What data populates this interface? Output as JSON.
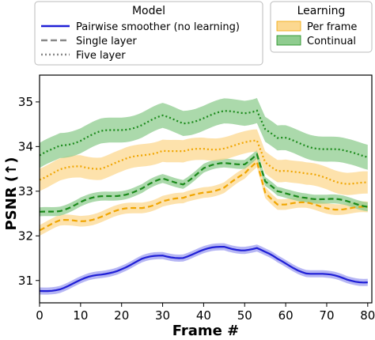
{
  "chart_data": {
    "type": "line",
    "xlabel": "Frame #",
    "ylabel": "PSNR (↑)",
    "xlim": [
      0,
      81
    ],
    "ylim": [
      30.5,
      35.6
    ],
    "xticks": [
      "0",
      "10",
      "20",
      "30",
      "40",
      "50",
      "60",
      "70",
      "80"
    ],
    "yticks": [
      "31",
      "32",
      "33",
      "34",
      "35"
    ],
    "legend_model": {
      "title": "Model",
      "entries": [
        "Pairwise smoother (no learning)",
        "Single layer",
        "Five layer"
      ]
    },
    "legend_learning": {
      "title": "Learning",
      "entries": [
        "Per frame",
        "Continual"
      ]
    },
    "colors": {
      "pairwise": "#1f1fd6",
      "per_frame": "#f0a500",
      "continual": "#1a8a1a",
      "per_frame_band": "#fcd890",
      "continual_band": "#8fcc8f",
      "pairwise_band": "#9d9df0"
    },
    "x": [
      0,
      5,
      10,
      15,
      20,
      25,
      30,
      35,
      40,
      45,
      50,
      53,
      55,
      58,
      60,
      65,
      70,
      75,
      80
    ],
    "series": [
      {
        "key": "pairwise",
        "dash": "solid",
        "band": 0.08,
        "values": [
          30.75,
          30.85,
          30.98,
          31.12,
          31.3,
          31.45,
          31.55,
          31.55,
          31.65,
          31.75,
          31.72,
          31.72,
          31.6,
          31.45,
          31.38,
          31.2,
          31.1,
          31.02,
          31.0
        ]
      },
      {
        "key": "per_frame_single",
        "dash": "dashed",
        "band": 0.12,
        "values": [
          32.15,
          32.3,
          32.35,
          32.45,
          32.55,
          32.65,
          32.8,
          32.8,
          33.0,
          33.1,
          33.35,
          33.65,
          33.0,
          32.75,
          32.72,
          32.7,
          32.65,
          32.62,
          32.6
        ]
      },
      {
        "key": "continual_single",
        "dash": "dashed",
        "band": 0.1,
        "values": [
          32.5,
          32.6,
          32.75,
          32.85,
          32.95,
          33.05,
          33.25,
          33.2,
          33.5,
          33.6,
          33.65,
          33.85,
          33.2,
          32.95,
          32.92,
          32.9,
          32.8,
          32.75,
          32.7
        ]
      },
      {
        "key": "per_frame_five",
        "dash": "dotted",
        "band": 0.25,
        "values": [
          33.3,
          33.45,
          33.55,
          33.55,
          33.65,
          33.8,
          33.95,
          33.85,
          33.95,
          34.0,
          34.05,
          34.1,
          33.65,
          33.5,
          33.5,
          33.35,
          33.3,
          33.2,
          33.15
        ]
      },
      {
        "key": "continual_five",
        "dash": "dotted",
        "band": 0.28,
        "values": [
          33.75,
          34.05,
          34.15,
          34.3,
          34.4,
          34.5,
          34.65,
          34.55,
          34.65,
          34.75,
          34.78,
          34.85,
          34.4,
          34.15,
          34.15,
          34.05,
          33.95,
          33.85,
          33.8
        ]
      }
    ]
  }
}
